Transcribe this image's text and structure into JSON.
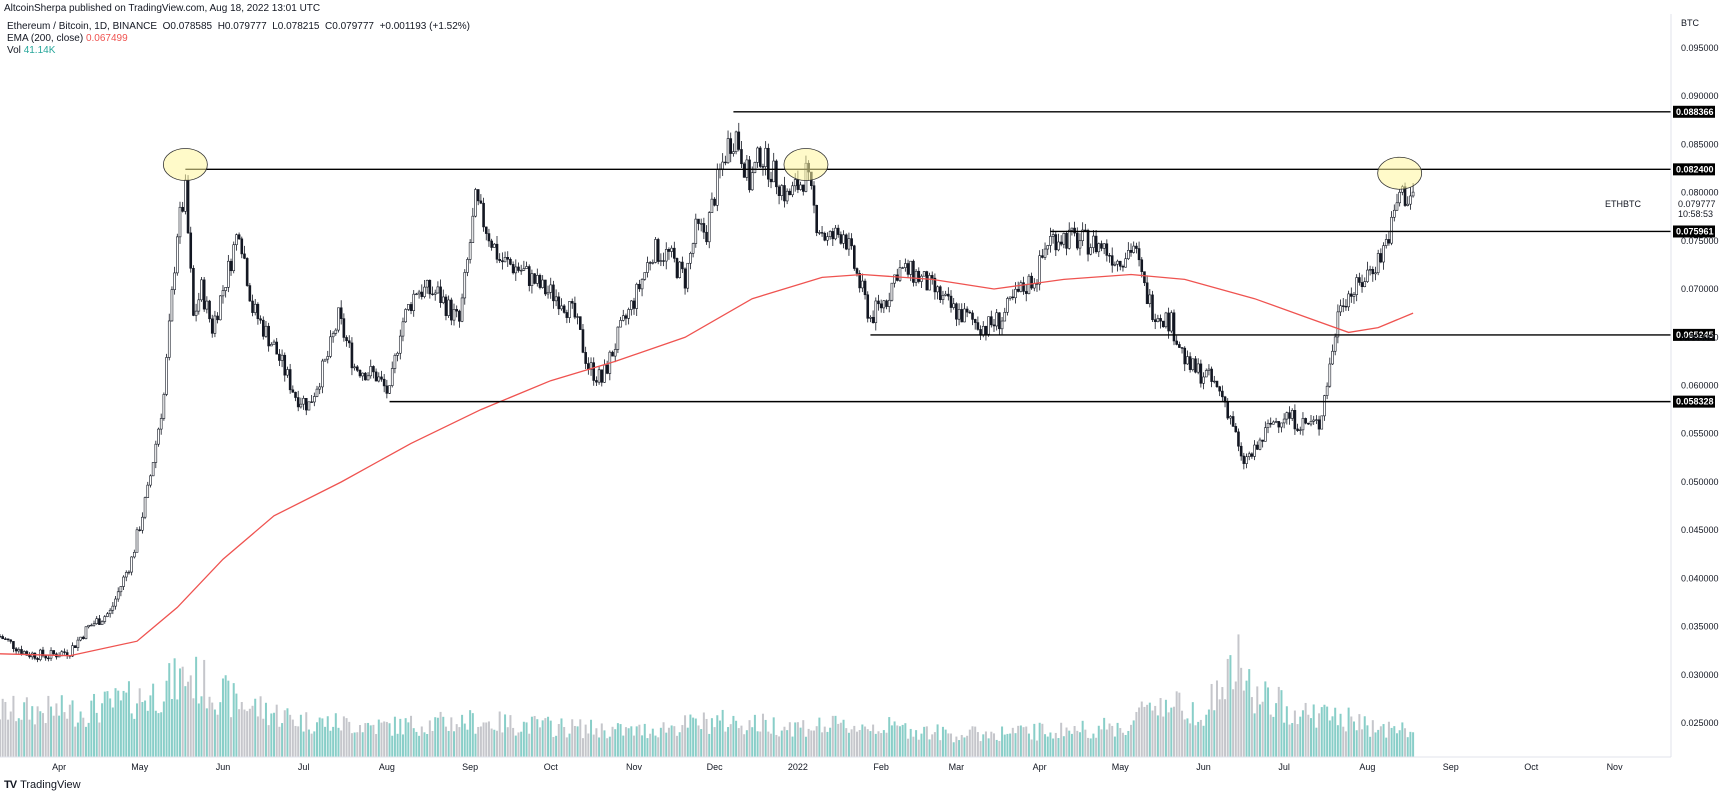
{
  "header": {
    "publish_line": "AltcoinSherpa published on TradingView.com, Aug 18, 2022 13:01 UTC",
    "symbol_line": "Ethereum / Bitcoin, 1D, BINANCE",
    "ohlc": {
      "o_label": "O",
      "o": "0.078585",
      "h_label": "H",
      "h": "0.079777",
      "l_label": "L",
      "l": "0.078215",
      "c_label": "C",
      "c": "0.079777",
      "change": "+0.001193 (+1.52%)"
    },
    "ema_label": "EMA (200, close)",
    "ema_value": "0.067499",
    "vol_label": "Vol",
    "vol_value": "41.14K"
  },
  "axis": {
    "currency": "BTC",
    "symbol_tag": "ETHBTC",
    "last_price": "0.079777",
    "countdown": "10:58:53"
  },
  "footer": {
    "brand": "TradingView"
  },
  "colors": {
    "candle": "#131722",
    "ema": "#ef5350",
    "vol_up": "#26a69a",
    "vol_down": "#9598a1",
    "level_tag": "#000000",
    "ellipse_fill": "#fff59d"
  },
  "chart_data": {
    "type": "candlestick",
    "y_scale": "linear",
    "ylim": [
      0.0215,
      0.0985
    ],
    "x_range": [
      "2021-03-10",
      "2022-11-22"
    ],
    "y_ticks": [
      "0.095000",
      "0.090000",
      "0.085000",
      "0.080000",
      "0.075000",
      "0.070000",
      "0.065000",
      "0.060000",
      "0.055000",
      "0.050000",
      "0.045000",
      "0.040000",
      "0.035000",
      "0.030000",
      "0.025000"
    ],
    "x_ticks": [
      {
        "label": "Apr",
        "date": "2021-04-01"
      },
      {
        "label": "May",
        "date": "2021-05-01"
      },
      {
        "label": "Jun",
        "date": "2021-06-01"
      },
      {
        "label": "Jul",
        "date": "2021-07-01"
      },
      {
        "label": "Aug",
        "date": "2021-08-01"
      },
      {
        "label": "Sep",
        "date": "2021-09-01"
      },
      {
        "label": "Oct",
        "date": "2021-10-01"
      },
      {
        "label": "Nov",
        "date": "2021-11-01"
      },
      {
        "label": "Dec",
        "date": "2021-12-01"
      },
      {
        "label": "2022",
        "date": "2022-01-01"
      },
      {
        "label": "Feb",
        "date": "2022-02-01"
      },
      {
        "label": "Mar",
        "date": "2022-03-01"
      },
      {
        "label": "Apr",
        "date": "2022-04-01"
      },
      {
        "label": "May",
        "date": "2022-05-01"
      },
      {
        "label": "Jun",
        "date": "2022-06-01"
      },
      {
        "label": "Jul",
        "date": "2022-07-01"
      },
      {
        "label": "Aug",
        "date": "2022-08-01"
      },
      {
        "label": "Sep",
        "date": "2022-09-01"
      },
      {
        "label": "Oct",
        "date": "2022-10-01"
      },
      {
        "label": "Nov",
        "date": "2022-11-01"
      }
    ],
    "price_path": [
      [
        "2021-03-10",
        0.034
      ],
      [
        "2021-03-20",
        0.0322
      ],
      [
        "2021-03-28",
        0.032
      ],
      [
        "2021-04-05",
        0.0325
      ],
      [
        "2021-04-12",
        0.035
      ],
      [
        "2021-04-20",
        0.0365
      ],
      [
        "2021-04-28",
        0.042
      ],
      [
        "2021-05-04",
        0.049
      ],
      [
        "2021-05-10",
        0.059
      ],
      [
        "2021-05-15",
        0.076
      ],
      [
        "2021-05-18",
        0.08
      ],
      [
        "2021-05-21",
        0.067
      ],
      [
        "2021-05-24",
        0.07
      ],
      [
        "2021-05-28",
        0.066
      ],
      [
        "2021-06-03",
        0.072
      ],
      [
        "2021-06-07",
        0.0765
      ],
      [
        "2021-06-12",
        0.068
      ],
      [
        "2021-06-20",
        0.064
      ],
      [
        "2021-06-28",
        0.059
      ],
      [
        "2021-07-03",
        0.058
      ],
      [
        "2021-07-10",
        0.063
      ],
      [
        "2021-07-14",
        0.067
      ],
      [
        "2021-07-20",
        0.062
      ],
      [
        "2021-07-28",
        0.061
      ],
      [
        "2021-08-02",
        0.059
      ],
      [
        "2021-08-06",
        0.066
      ],
      [
        "2021-08-12",
        0.07
      ],
      [
        "2021-08-20",
        0.0695
      ],
      [
        "2021-08-28",
        0.0665
      ],
      [
        "2021-09-03",
        0.079
      ],
      [
        "2021-09-06",
        0.077
      ],
      [
        "2021-09-12",
        0.073
      ],
      [
        "2021-09-20",
        0.072
      ],
      [
        "2021-09-28",
        0.07
      ],
      [
        "2021-10-05",
        0.069
      ],
      [
        "2021-10-10",
        0.067
      ],
      [
        "2021-10-15",
        0.062
      ],
      [
        "2021-10-20",
        0.0605
      ],
      [
        "2021-10-26",
        0.065
      ],
      [
        "2021-11-02",
        0.0695
      ],
      [
        "2021-11-08",
        0.074
      ],
      [
        "2021-11-14",
        0.0735
      ],
      [
        "2021-11-20",
        0.071
      ],
      [
        "2021-11-24",
        0.076
      ],
      [
        "2021-11-28",
        0.076
      ],
      [
        "2021-12-02",
        0.081
      ],
      [
        "2021-12-06",
        0.085
      ],
      [
        "2021-12-09",
        0.086
      ],
      [
        "2021-12-14",
        0.081
      ],
      [
        "2021-12-18",
        0.084
      ],
      [
        "2021-12-24",
        0.0815
      ],
      [
        "2021-12-28",
        0.0795
      ],
      [
        "2022-01-02",
        0.081
      ],
      [
        "2022-01-04",
        0.082
      ],
      [
        "2022-01-08",
        0.077
      ],
      [
        "2022-01-12",
        0.075
      ],
      [
        "2022-01-18",
        0.076
      ],
      [
        "2022-01-24",
        0.0705
      ],
      [
        "2022-01-28",
        0.067
      ],
      [
        "2022-02-03",
        0.069
      ],
      [
        "2022-02-07",
        0.072
      ],
      [
        "2022-02-14",
        0.0715
      ],
      [
        "2022-02-20",
        0.07
      ],
      [
        "2022-02-27",
        0.068
      ],
      [
        "2022-03-05",
        0.067
      ],
      [
        "2022-03-12",
        0.066
      ],
      [
        "2022-03-18",
        0.067
      ],
      [
        "2022-03-24",
        0.0695
      ],
      [
        "2022-03-31",
        0.0715
      ],
      [
        "2022-04-04",
        0.075
      ],
      [
        "2022-04-08",
        0.0755
      ],
      [
        "2022-04-16",
        0.075
      ],
      [
        "2022-04-24",
        0.0745
      ],
      [
        "2022-04-30",
        0.073
      ],
      [
        "2022-05-06",
        0.0745
      ],
      [
        "2022-05-10",
        0.07
      ],
      [
        "2022-05-13",
        0.068
      ],
      [
        "2022-05-20",
        0.0665
      ],
      [
        "2022-05-26",
        0.062
      ],
      [
        "2022-06-02",
        0.061
      ],
      [
        "2022-06-08",
        0.059
      ],
      [
        "2022-06-12",
        0.056
      ],
      [
        "2022-06-15",
        0.052
      ],
      [
        "2022-06-20",
        0.053
      ],
      [
        "2022-06-26",
        0.056
      ],
      [
        "2022-07-01",
        0.057
      ],
      [
        "2022-07-08",
        0.056
      ],
      [
        "2022-07-14",
        0.056
      ],
      [
        "2022-07-18",
        0.062
      ],
      [
        "2022-07-22",
        0.069
      ],
      [
        "2022-07-28",
        0.07
      ],
      [
        "2022-08-02",
        0.072
      ],
      [
        "2022-08-06",
        0.0735
      ],
      [
        "2022-08-10",
        0.0765
      ],
      [
        "2022-08-13",
        0.08
      ],
      [
        "2022-08-16",
        0.0795
      ],
      [
        "2022-08-18",
        0.0798
      ]
    ],
    "ema_200_path": [
      [
        "2021-03-10",
        0.0322
      ],
      [
        "2021-04-05",
        0.032
      ],
      [
        "2021-04-30",
        0.0335
      ],
      [
        "2021-05-15",
        0.037
      ],
      [
        "2021-06-01",
        0.042
      ],
      [
        "2021-06-20",
        0.0465
      ],
      [
        "2021-07-15",
        0.05
      ],
      [
        "2021-08-10",
        0.054
      ],
      [
        "2021-09-05",
        0.0575
      ],
      [
        "2021-10-01",
        0.0605
      ],
      [
        "2021-10-25",
        0.0625
      ],
      [
        "2021-11-20",
        0.065
      ],
      [
        "2021-12-15",
        0.069
      ],
      [
        "2022-01-10",
        0.0712
      ],
      [
        "2022-01-25",
        0.0715
      ],
      [
        "2022-02-20",
        0.071
      ],
      [
        "2022-03-15",
        0.07
      ],
      [
        "2022-04-10",
        0.071
      ],
      [
        "2022-05-05",
        0.0715
      ],
      [
        "2022-05-25",
        0.071
      ],
      [
        "2022-06-20",
        0.069
      ],
      [
        "2022-07-10",
        0.067
      ],
      [
        "2022-07-25",
        0.0655
      ],
      [
        "2022-08-05",
        0.066
      ],
      [
        "2022-08-18",
        0.0675
      ]
    ],
    "volume_profile": [
      [
        "2021-03-10",
        0.45
      ],
      [
        "2021-04-10",
        0.45
      ],
      [
        "2021-05-05",
        0.6
      ],
      [
        "2021-05-19",
        0.8
      ],
      [
        "2021-06-05",
        0.55
      ],
      [
        "2021-07-01",
        0.35
      ],
      [
        "2021-08-01",
        0.3
      ],
      [
        "2021-09-01",
        0.35
      ],
      [
        "2021-10-01",
        0.3
      ],
      [
        "2021-11-01",
        0.25
      ],
      [
        "2021-12-01",
        0.35
      ],
      [
        "2022-01-01",
        0.3
      ],
      [
        "2022-02-01",
        0.3
      ],
      [
        "2022-03-01",
        0.22
      ],
      [
        "2022-04-01",
        0.25
      ],
      [
        "2022-05-05",
        0.3
      ],
      [
        "2022-05-12",
        0.55
      ],
      [
        "2022-06-01",
        0.45
      ],
      [
        "2022-06-14",
        0.9
      ],
      [
        "2022-06-20",
        0.6
      ],
      [
        "2022-07-05",
        0.45
      ],
      [
        "2022-07-20",
        0.4
      ],
      [
        "2022-08-01",
        0.3
      ],
      [
        "2022-08-18",
        0.25
      ]
    ],
    "horizontal_levels": [
      {
        "value": 0.088366,
        "label": "0.088366",
        "from_date": "2021-12-08"
      },
      {
        "value": 0.0824,
        "label": "0.082400",
        "from_date": "2021-05-18"
      },
      {
        "value": 0.075961,
        "label": "0.075961",
        "from_date": "2022-04-05"
      },
      {
        "value": 0.065245,
        "label": "0.065245",
        "from_date": "2022-01-28"
      },
      {
        "value": 0.058328,
        "label": "0.058328",
        "from_date": "2021-08-02"
      }
    ],
    "highlight_ellipses": [
      {
        "date": "2021-05-18",
        "value": 0.0829
      },
      {
        "date": "2022-01-04",
        "value": 0.0829
      },
      {
        "date": "2022-08-13",
        "value": 0.082
      }
    ]
  }
}
